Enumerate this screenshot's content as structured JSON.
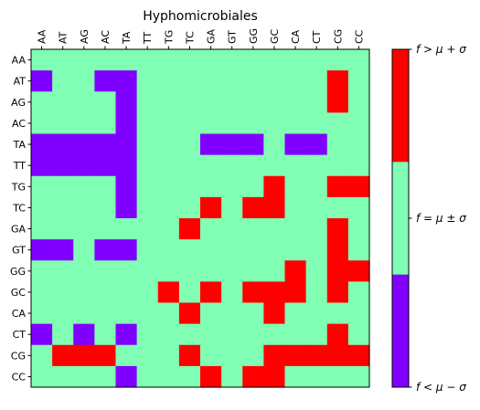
{
  "chart_data": {
    "type": "heatmap",
    "title": "Hyphomicrobiales",
    "xlabel": "",
    "ylabel": "",
    "x_labels": [
      "AA",
      "AT",
      "AG",
      "AC",
      "TA",
      "TT",
      "TG",
      "TC",
      "GA",
      "GT",
      "GG",
      "GC",
      "CA",
      "CT",
      "CG",
      "CC"
    ],
    "y_labels": [
      "AA",
      "AT",
      "AG",
      "AC",
      "TA",
      "TT",
      "TG",
      "TC",
      "GA",
      "GT",
      "GG",
      "GC",
      "CA",
      "CT",
      "CG",
      "CC"
    ],
    "x_label_position": "top",
    "legend": "right",
    "grid": false,
    "values": [
      [
        0,
        0,
        0,
        0,
        0,
        0,
        0,
        0,
        0,
        0,
        0,
        0,
        0,
        0,
        0,
        0
      ],
      [
        -1,
        0,
        0,
        -1,
        -1,
        0,
        0,
        0,
        0,
        0,
        0,
        0,
        0,
        0,
        1,
        0
      ],
      [
        0,
        0,
        0,
        0,
        -1,
        0,
        0,
        0,
        0,
        0,
        0,
        0,
        0,
        0,
        1,
        0
      ],
      [
        0,
        0,
        0,
        0,
        -1,
        0,
        0,
        0,
        0,
        0,
        0,
        0,
        0,
        0,
        0,
        0
      ],
      [
        -1,
        -1,
        -1,
        -1,
        -1,
        0,
        0,
        0,
        -1,
        -1,
        -1,
        0,
        -1,
        -1,
        0,
        0
      ],
      [
        -1,
        -1,
        -1,
        -1,
        -1,
        0,
        0,
        0,
        0,
        0,
        0,
        0,
        0,
        0,
        0,
        0
      ],
      [
        0,
        0,
        0,
        0,
        -1,
        0,
        0,
        0,
        0,
        0,
        0,
        1,
        0,
        0,
        1,
        1
      ],
      [
        0,
        0,
        0,
        0,
        -1,
        0,
        0,
        0,
        1,
        0,
        1,
        1,
        0,
        0,
        0,
        0
      ],
      [
        0,
        0,
        0,
        0,
        0,
        0,
        0,
        1,
        0,
        0,
        0,
        0,
        0,
        0,
        1,
        0
      ],
      [
        -1,
        -1,
        0,
        -1,
        -1,
        0,
        0,
        0,
        0,
        0,
        0,
        0,
        0,
        0,
        1,
        0
      ],
      [
        0,
        0,
        0,
        0,
        0,
        0,
        0,
        0,
        0,
        0,
        0,
        0,
        1,
        0,
        1,
        1
      ],
      [
        0,
        0,
        0,
        0,
        0,
        0,
        1,
        0,
        1,
        0,
        1,
        1,
        1,
        0,
        1,
        0
      ],
      [
        0,
        0,
        0,
        0,
        0,
        0,
        0,
        1,
        0,
        0,
        0,
        1,
        0,
        0,
        0,
        0
      ],
      [
        -1,
        0,
        -1,
        0,
        -1,
        0,
        0,
        0,
        0,
        0,
        0,
        0,
        0,
        0,
        1,
        0
      ],
      [
        0,
        1,
        1,
        1,
        0,
        0,
        0,
        1,
        0,
        0,
        0,
        1,
        1,
        1,
        1,
        1
      ],
      [
        0,
        0,
        0,
        0,
        -1,
        0,
        0,
        0,
        1,
        0,
        1,
        1,
        0,
        0,
        0,
        0
      ]
    ],
    "value_legend": {
      "-1": "f < μ − σ",
      "0": "f = μ ± σ",
      "1": "f > μ + σ"
    },
    "colors": {
      "-1": "#8000ff",
      "0": "#80ffb4",
      "1": "#ff0000"
    },
    "colorbar": {
      "labels": [
        "f > μ + σ",
        "f = μ ± σ",
        "f < μ − σ"
      ],
      "colors_top_to_bottom": [
        "#ff0000",
        "#80ffb4",
        "#8000ff"
      ]
    }
  }
}
